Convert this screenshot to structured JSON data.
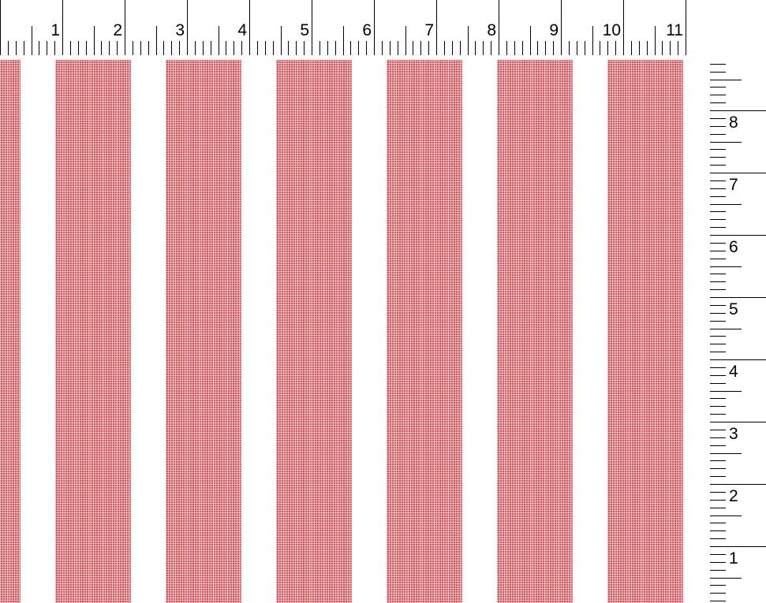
{
  "top_ruler": {
    "unit": "inch",
    "labels": [
      "1",
      "2",
      "3",
      "4",
      "5",
      "6",
      "7",
      "8",
      "9",
      "10",
      "11"
    ]
  },
  "right_ruler": {
    "unit": "inch",
    "labels": [
      "1",
      "2",
      "3",
      "4",
      "5",
      "6",
      "7",
      "8"
    ]
  },
  "fabric": {
    "pattern": "vertical stripes",
    "stripe_color": "#d8555a",
    "ground_color": "#ffffff",
    "stripe_count": 7
  }
}
